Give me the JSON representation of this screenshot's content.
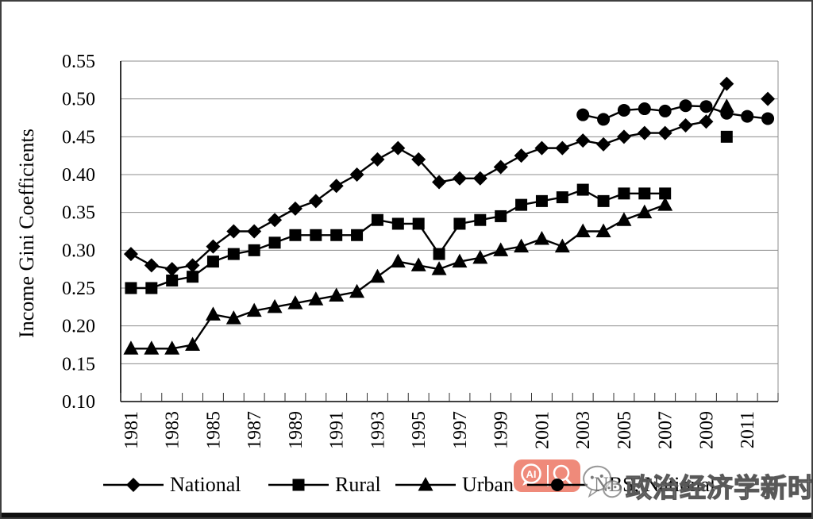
{
  "figure": {
    "watermark_badge": {
      "ai_label": "AI"
    },
    "watermark_text": "政治经济学新时空"
  },
  "chart_data": {
    "type": "line",
    "title": "",
    "xlabel": "",
    "ylabel": "Income Gini Coefficients",
    "ylim": [
      0.1,
      0.55
    ],
    "y_tick_step": 0.05,
    "y_tick_labels": [
      "0.10",
      "0.15",
      "0.20",
      "0.25",
      "0.30",
      "0.35",
      "0.40",
      "0.45",
      "0.50",
      "0.55"
    ],
    "grid": "horizontal-gray",
    "legend_position": "bottom",
    "marker_color": "#000000",
    "years": [
      1981,
      1982,
      1983,
      1984,
      1985,
      1986,
      1987,
      1988,
      1989,
      1990,
      1991,
      1992,
      1993,
      1994,
      1995,
      1996,
      1997,
      1998,
      1999,
      2000,
      2001,
      2002,
      2003,
      2004,
      2005,
      2006,
      2007,
      2008,
      2009,
      2010,
      2011,
      2012
    ],
    "x_tick_labels": [
      "1981",
      "1983",
      "1985",
      "1987",
      "1989",
      "1991",
      "1993",
      "1995",
      "1997",
      "1999",
      "2001",
      "2003",
      "2005",
      "2007",
      "2009",
      "2011"
    ],
    "series": [
      {
        "name": "National",
        "marker": "diamond",
        "values": [
          0.295,
          0.28,
          0.275,
          0.28,
          0.305,
          0.325,
          0.325,
          0.34,
          0.355,
          0.365,
          0.385,
          0.4,
          0.42,
          0.435,
          0.42,
          0.39,
          0.395,
          0.395,
          0.41,
          0.425,
          0.435,
          0.435,
          0.445,
          0.44,
          0.45,
          0.455,
          0.455,
          0.465,
          0.47,
          0.52,
          null,
          0.5
        ]
      },
      {
        "name": "Rural",
        "marker": "square",
        "values": [
          0.25,
          0.25,
          0.26,
          0.265,
          0.285,
          0.295,
          0.3,
          0.31,
          0.32,
          0.32,
          0.32,
          0.32,
          0.34,
          0.335,
          0.335,
          0.295,
          0.335,
          0.34,
          0.345,
          0.36,
          0.365,
          0.37,
          0.38,
          0.365,
          0.375,
          0.375,
          0.375,
          null,
          null,
          0.45,
          null,
          null
        ]
      },
      {
        "name": "Urban",
        "marker": "triangle",
        "values": [
          0.17,
          0.17,
          0.17,
          0.175,
          0.215,
          0.21,
          0.22,
          0.225,
          0.23,
          0.235,
          0.24,
          0.245,
          0.265,
          0.285,
          0.28,
          0.275,
          0.285,
          0.29,
          0.3,
          0.305,
          0.315,
          0.305,
          0.325,
          0.325,
          0.34,
          0.35,
          0.36,
          null,
          null,
          0.49,
          null,
          null
        ]
      },
      {
        "name": "NBS, National",
        "marker": "circle",
        "values": [
          null,
          null,
          null,
          null,
          null,
          null,
          null,
          null,
          null,
          null,
          null,
          null,
          null,
          null,
          null,
          null,
          null,
          null,
          null,
          null,
          null,
          null,
          0.479,
          0.473,
          0.485,
          0.487,
          0.484,
          0.491,
          0.49,
          0.481,
          0.477,
          0.474
        ]
      }
    ]
  }
}
